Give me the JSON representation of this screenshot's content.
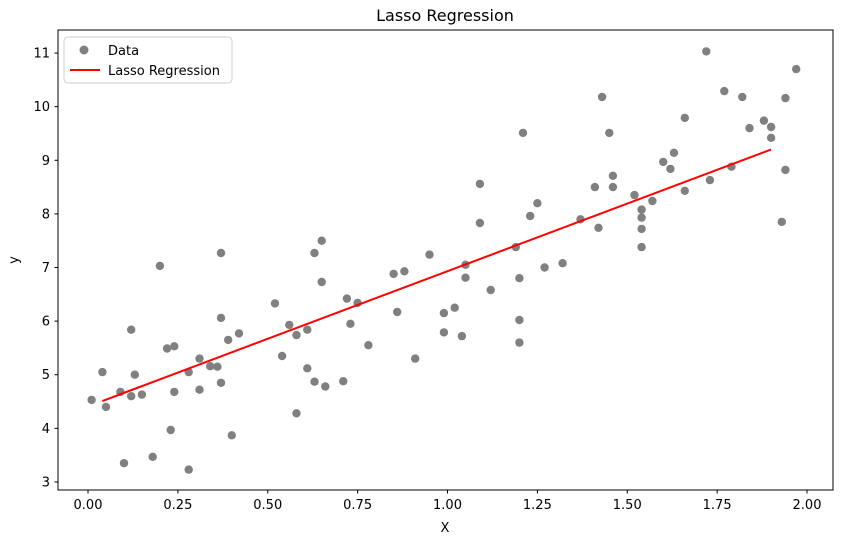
{
  "title": "Lasso Regression",
  "xlabel": "X",
  "ylabel": "y",
  "colors": {
    "scatter": "#808080",
    "line": "#ff0000",
    "axis": "#000000",
    "legend_border": "#cccccc",
    "background": "#ffffff"
  },
  "legend": {
    "position": "upper left",
    "items": [
      {
        "label": "Data",
        "type": "marker",
        "color": "#808080"
      },
      {
        "label": "Lasso Regression",
        "type": "line",
        "color": "#ff0000"
      }
    ]
  },
  "chart_data": {
    "type": "scatter",
    "title": "Lasso Regression",
    "xlabel": "X",
    "ylabel": "y",
    "xlim": [
      -0.0835,
      2.0723
    ],
    "ylim": [
      2.85,
      11.43
    ],
    "grid": false,
    "legend_position": "upper left",
    "xticks": [
      {
        "value": 0.0,
        "label": "0.00"
      },
      {
        "value": 0.25,
        "label": "0.25"
      },
      {
        "value": 0.5,
        "label": "0.50"
      },
      {
        "value": 0.75,
        "label": "0.75"
      },
      {
        "value": 1.0,
        "label": "1.00"
      },
      {
        "value": 1.25,
        "label": "1.25"
      },
      {
        "value": 1.5,
        "label": "1.50"
      },
      {
        "value": 1.75,
        "label": "1.75"
      },
      {
        "value": 2.0,
        "label": "2.00"
      }
    ],
    "yticks": [
      {
        "value": 3,
        "label": "3"
      },
      {
        "value": 4,
        "label": "4"
      },
      {
        "value": 5,
        "label": "5"
      },
      {
        "value": 6,
        "label": "6"
      },
      {
        "value": 7,
        "label": "7"
      },
      {
        "value": 8,
        "label": "8"
      },
      {
        "value": 9,
        "label": "9"
      },
      {
        "value": 10,
        "label": "10"
      },
      {
        "value": 11,
        "label": "11"
      }
    ],
    "series": [
      {
        "name": "Data",
        "type": "scatter",
        "color": "#808080",
        "marker_radius": 4.2,
        "points": [
          [
            0.01,
            4.53
          ],
          [
            0.04,
            5.05
          ],
          [
            0.05,
            4.4
          ],
          [
            0.09,
            4.68
          ],
          [
            0.1,
            3.35
          ],
          [
            0.12,
            5.84
          ],
          [
            0.12,
            4.6
          ],
          [
            0.13,
            5.0
          ],
          [
            0.15,
            4.63
          ],
          [
            0.18,
            3.47
          ],
          [
            0.2,
            7.03
          ],
          [
            0.22,
            5.49
          ],
          [
            0.23,
            3.97
          ],
          [
            0.24,
            5.53
          ],
          [
            0.24,
            4.68
          ],
          [
            0.28,
            5.05
          ],
          [
            0.28,
            3.23
          ],
          [
            0.31,
            5.3
          ],
          [
            0.31,
            4.72
          ],
          [
            0.34,
            5.16
          ],
          [
            0.36,
            5.15
          ],
          [
            0.37,
            7.27
          ],
          [
            0.37,
            6.06
          ],
          [
            0.37,
            4.85
          ],
          [
            0.39,
            5.65
          ],
          [
            0.4,
            3.87
          ],
          [
            0.42,
            5.77
          ],
          [
            0.52,
            6.33
          ],
          [
            0.54,
            5.35
          ],
          [
            0.56,
            5.93
          ],
          [
            0.58,
            5.74
          ],
          [
            0.58,
            4.28
          ],
          [
            0.61,
            5.84
          ],
          [
            0.61,
            5.12
          ],
          [
            0.63,
            7.27
          ],
          [
            0.63,
            4.87
          ],
          [
            0.65,
            7.5
          ],
          [
            0.65,
            6.73
          ],
          [
            0.66,
            4.78
          ],
          [
            0.71,
            4.88
          ],
          [
            0.72,
            6.42
          ],
          [
            0.73,
            5.95
          ],
          [
            0.75,
            6.34
          ],
          [
            0.78,
            5.55
          ],
          [
            0.85,
            6.88
          ],
          [
            0.86,
            6.17
          ],
          [
            0.88,
            6.93
          ],
          [
            0.91,
            5.3
          ],
          [
            0.95,
            7.24
          ],
          [
            0.99,
            6.15
          ],
          [
            0.99,
            5.79
          ],
          [
            1.02,
            6.25
          ],
          [
            1.04,
            5.72
          ],
          [
            1.05,
            7.05
          ],
          [
            1.05,
            6.81
          ],
          [
            1.09,
            8.56
          ],
          [
            1.09,
            7.83
          ],
          [
            1.12,
            6.58
          ],
          [
            1.19,
            7.38
          ],
          [
            1.2,
            6.8
          ],
          [
            1.2,
            6.02
          ],
          [
            1.2,
            5.6
          ],
          [
            1.21,
            9.51
          ],
          [
            1.23,
            7.96
          ],
          [
            1.25,
            8.2
          ],
          [
            1.27,
            7.0
          ],
          [
            1.32,
            7.08
          ],
          [
            1.37,
            7.9
          ],
          [
            1.41,
            8.5
          ],
          [
            1.42,
            7.74
          ],
          [
            1.43,
            10.18
          ],
          [
            1.45,
            9.51
          ],
          [
            1.46,
            8.71
          ],
          [
            1.46,
            8.5
          ],
          [
            1.52,
            8.35
          ],
          [
            1.54,
            8.08
          ],
          [
            1.54,
            7.93
          ],
          [
            1.54,
            7.72
          ],
          [
            1.54,
            7.38
          ],
          [
            1.57,
            8.24
          ],
          [
            1.6,
            8.97
          ],
          [
            1.62,
            8.84
          ],
          [
            1.63,
            9.14
          ],
          [
            1.66,
            9.79
          ],
          [
            1.66,
            8.43
          ],
          [
            1.72,
            11.03
          ],
          [
            1.73,
            8.63
          ],
          [
            1.77,
            10.29
          ],
          [
            1.79,
            8.88
          ],
          [
            1.82,
            10.18
          ],
          [
            1.84,
            9.6
          ],
          [
            1.88,
            9.74
          ],
          [
            1.9,
            9.62
          ],
          [
            1.9,
            9.42
          ],
          [
            1.93,
            7.85
          ],
          [
            1.94,
            10.16
          ],
          [
            1.94,
            8.82
          ],
          [
            1.97,
            10.7
          ]
        ]
      },
      {
        "name": "Lasso Regression",
        "type": "line",
        "color": "#ff0000",
        "line_width": 2,
        "points": [
          [
            0.04,
            4.51
          ],
          [
            1.9,
            9.2
          ]
        ]
      }
    ]
  }
}
